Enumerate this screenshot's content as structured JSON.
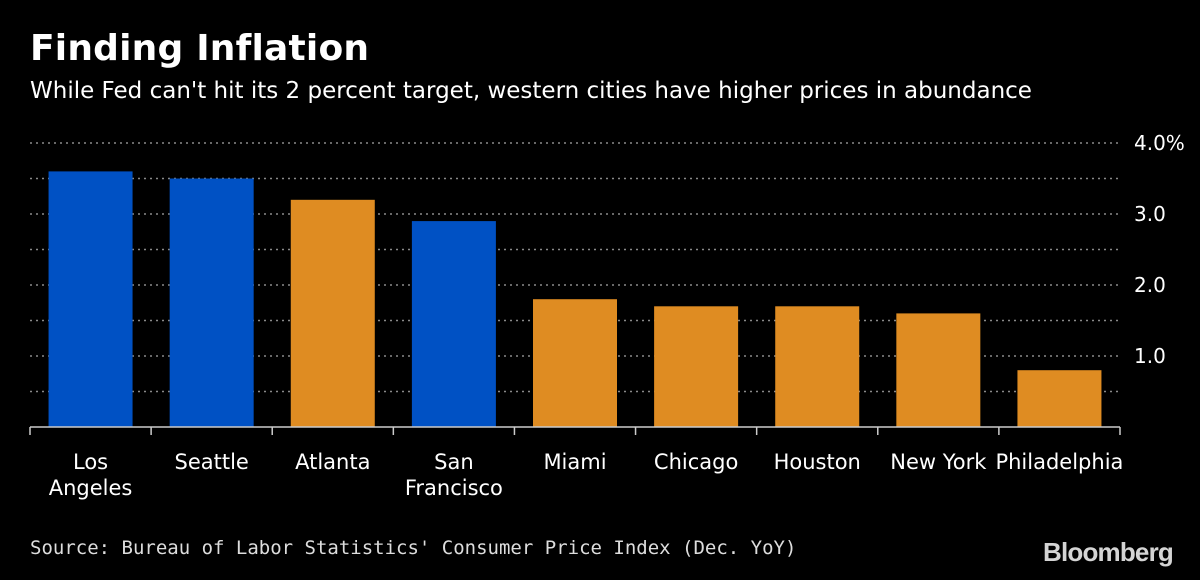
{
  "header": {
    "title": "Finding Inflation",
    "subtitle": "While Fed can't hit its 2 percent target, western cities have higher prices in abundance"
  },
  "footer": {
    "source": "Source: Bureau of Labor Statistics' Consumer Price Index (Dec. YoY)",
    "brand": "Bloomberg"
  },
  "colors": {
    "west": "#0051c4",
    "other": "#df8c22",
    "grid": "#8a8a8a",
    "text": "#ffffff"
  },
  "chart_data": {
    "type": "bar",
    "categories": [
      "Los\nAngeles",
      "Seattle",
      "Atlanta",
      "San\nFrancisco",
      "Miami",
      "Chicago",
      "Houston",
      "New York",
      "Philadelphia"
    ],
    "values": [
      3.6,
      3.5,
      3.2,
      2.9,
      1.8,
      1.7,
      1.7,
      1.6,
      0.8
    ],
    "groups": [
      "west",
      "west",
      "other",
      "west",
      "other",
      "other",
      "other",
      "other",
      "other"
    ],
    "ylim": [
      0,
      4.0
    ],
    "yticks": [
      1.0,
      2.0,
      3.0,
      4.0
    ],
    "ytick_labels": [
      "1.0",
      "2.0",
      "3.0",
      "4.0%"
    ],
    "grid": true,
    "y_axis_side": "right"
  }
}
